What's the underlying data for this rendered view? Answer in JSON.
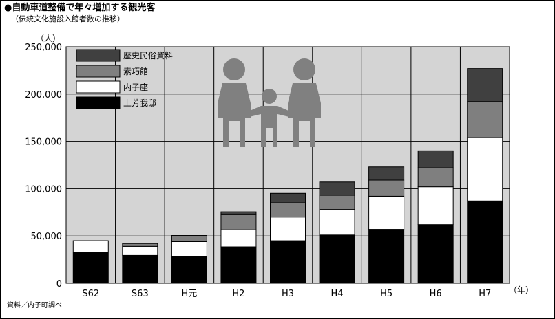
{
  "header": {
    "title": "●自動車道整備で年々増加する観光客",
    "subtitle": "（伝統文化施設入館者数の推移）"
  },
  "source": "資料／内子町調べ",
  "chart_data": {
    "type": "bar",
    "stacked": true,
    "categories": [
      "S62",
      "S63",
      "H元",
      "H2",
      "H3",
      "H4",
      "H5",
      "H6",
      "H7"
    ],
    "series": [
      {
        "name": "上芳我邸",
        "color": "#000000",
        "values": [
          33000,
          29500,
          28500,
          38500,
          45000,
          51000,
          57000,
          62000,
          87000
        ]
      },
      {
        "name": "内子座",
        "color": "#ffffff",
        "values": [
          12000,
          9500,
          15500,
          18000,
          25000,
          27000,
          35000,
          40000,
          67000
        ]
      },
      {
        "name": "素巧館",
        "color": "#7f7f7f",
        "values": [
          0,
          3000,
          6500,
          16000,
          15000,
          15000,
          17000,
          20000,
          38000
        ]
      },
      {
        "name": "歴史民俗資料",
        "color": "#404040",
        "values": [
          0,
          0,
          0,
          3000,
          10000,
          14000,
          14000,
          18000,
          35000
        ]
      }
    ],
    "yunit": "（人）",
    "xunit": "（年）",
    "ylim": [
      0,
      250000
    ],
    "yticks": [
      "0",
      "50,000",
      "100,000",
      "150,000",
      "200,000",
      "250,000"
    ],
    "grid": true,
    "legend_position": "top-left",
    "plot_bg": "#d4d4d4"
  }
}
